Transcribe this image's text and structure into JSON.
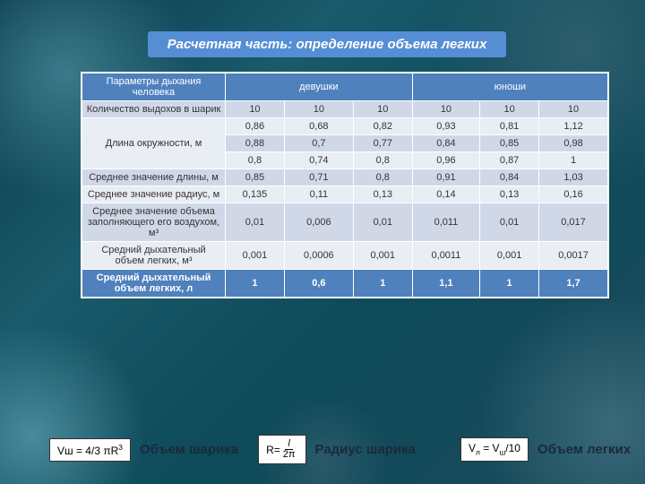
{
  "title": "Расчетная часть: определение объема легких",
  "table": {
    "header_param": "Параметры дыхания человека",
    "header_girls": "девушки",
    "header_boys": "юноши",
    "rows": [
      {
        "param": "Количество выдохов в шарик",
        "cells": [
          "10",
          "10",
          "10",
          "10",
          "10",
          "10"
        ],
        "cls": "row-alt"
      },
      {
        "param": "Длина окружности, м",
        "cells": [
          "0,86",
          "0,68",
          "0,82",
          "0,93",
          "0,81",
          "1,12"
        ],
        "cls": "row-norm",
        "rowspan": 3
      },
      {
        "cells": [
          "0,88",
          "0,7",
          "0,77",
          "0,84",
          "0,85",
          "0,98"
        ],
        "cls": "row-alt"
      },
      {
        "cells": [
          "0,8",
          "0,74",
          "0,8",
          "0,96",
          "0,87",
          "1"
        ],
        "cls": "row-norm"
      },
      {
        "param": "Среднее значение длины, м",
        "cells": [
          "0,85",
          "0,71",
          "0,8",
          "0,91",
          "0,84",
          "1,03"
        ],
        "cls": "row-alt"
      },
      {
        "param": "Среднее значение радиус, м",
        "cells": [
          "0,135",
          "0,11",
          "0,13",
          "0,14",
          "0,13",
          "0,16"
        ],
        "cls": "row-norm"
      },
      {
        "param": "Среднее значение объема заполняющего его воздухом, м³",
        "cells": [
          "0,01",
          "0,006",
          "0,01",
          "0,011",
          "0,01",
          "0,017"
        ],
        "cls": "row-alt"
      },
      {
        "param": "Средний дыхательный объем легких, м³",
        "cells": [
          "0,001",
          "0,0006",
          "0,001",
          "0,0011",
          "0,001",
          "0,0017"
        ],
        "cls": "row-norm"
      },
      {
        "param": "Средний дыхательный объем легких, л",
        "cells": [
          "1",
          "0,6",
          "1",
          "1,1",
          "1",
          "1,7"
        ],
        "cls": "row-highlight"
      }
    ]
  },
  "formulas": {
    "f1": "Vш = 4/3 πR³",
    "f1_label": "Объем шарика",
    "f2_prefix": "R=",
    "f2_num": "l",
    "f2_den": "2π",
    "f2_label": "Радиус шарика",
    "f3_lhs": "Vл",
    "f3_eq": " = ",
    "f3_rhs1": "Vш",
    "f3_rhs2": "/10",
    "f3_label": "Объем легких"
  },
  "colors": {
    "title_bg": "#558ed5",
    "header_bg": "#4f81bd",
    "row_alt": "#d0d8e8",
    "row_norm": "#e9edf4",
    "highlight": "#4f81bd"
  }
}
